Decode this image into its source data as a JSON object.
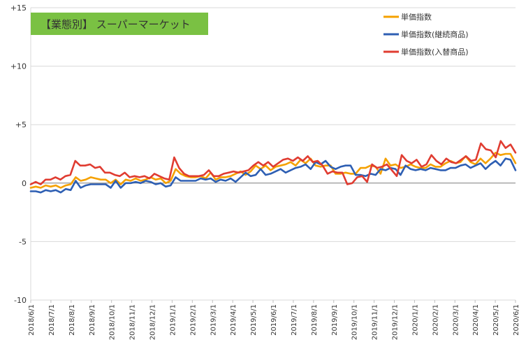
{
  "chart_data": {
    "type": "line",
    "title": "【業態別】 スーパーマーケット",
    "title_bg_color": "#7ac143",
    "title_text_color": "#ffffff",
    "ylim": [
      -10,
      15
    ],
    "yticks": [
      {
        "value": 15,
        "label": "+15"
      },
      {
        "value": 10,
        "label": "+10"
      },
      {
        "value": 5,
        "label": "+5"
      },
      {
        "value": 0,
        "label": "0"
      },
      {
        "value": -5,
        "label": "-5"
      },
      {
        "value": -10,
        "label": "-10"
      }
    ],
    "grid": "horizontal",
    "legend_position": "top-right",
    "x_tick_labels": [
      "2018/6/1",
      "2018/7/1",
      "2018/8/1",
      "2018/9/1",
      "2018/10/1",
      "2018/11/1",
      "2018/12/1",
      "2019/1/1",
      "2019/2/1",
      "2019/3/1",
      "2019/4/1",
      "2019/5/1",
      "2019/6/1",
      "2019/7/1",
      "2019/8/1",
      "2019/9/1",
      "2019/10/1",
      "2019/11/1",
      "2019/12/1",
      "2020/1/1",
      "2020/2/1",
      "2020/3/1",
      "2020/4/1",
      "2020/5/1",
      "2020/6/1"
    ],
    "x_range": [
      "2018/6/1",
      "2020/6/1"
    ],
    "series": [
      {
        "name": "単価指数",
        "color": "#f5a100",
        "values": [
          -0.4,
          -0.3,
          -0.4,
          -0.2,
          -0.3,
          -0.2,
          -0.4,
          -0.2,
          -0.1,
          0.5,
          0.2,
          0.3,
          0.5,
          0.4,
          0.3,
          0.3,
          0.0,
          0.3,
          -0.1,
          0.3,
          0.2,
          0.4,
          0.2,
          0.3,
          0.5,
          0.3,
          0.4,
          0.0,
          0.2,
          1.2,
          0.8,
          0.6,
          0.5,
          0.5,
          0.6,
          0.4,
          0.9,
          0.3,
          0.5,
          0.5,
          0.6,
          0.8,
          1.0,
          0.7,
          1.0,
          1.5,
          1.2,
          1.5,
          1.1,
          1.4,
          1.5,
          1.6,
          1.8,
          1.5,
          2.0,
          1.7,
          2.1,
          1.5,
          1.4,
          1.5,
          1.5,
          0.8,
          0.8,
          0.9,
          0.8,
          0.8,
          1.3,
          1.3,
          1.5,
          1.4,
          0.8,
          2.1,
          1.5,
          1.6,
          1.3,
          1.4,
          1.6,
          1.4,
          1.3,
          1.3,
          1.6,
          1.4,
          1.4,
          1.7,
          1.9,
          1.7,
          1.8,
          2.3,
          1.8,
          1.6,
          2.1,
          1.7,
          2.1,
          2.6,
          2.4,
          2.5,
          2.5,
          1.7
        ]
      },
      {
        "name": "単価指数(継続商品)",
        "color": "#2e5fb3",
        "values": [
          -0.7,
          -0.7,
          -0.8,
          -0.6,
          -0.7,
          -0.6,
          -0.8,
          -0.5,
          -0.6,
          0.2,
          -0.4,
          -0.2,
          -0.1,
          -0.1,
          -0.1,
          -0.1,
          -0.4,
          0.2,
          -0.4,
          0.0,
          0.0,
          0.1,
          0.0,
          0.2,
          0.1,
          -0.1,
          0.0,
          -0.3,
          -0.2,
          0.5,
          0.2,
          0.2,
          0.2,
          0.2,
          0.4,
          0.3,
          0.4,
          0.1,
          0.3,
          0.2,
          0.4,
          0.1,
          0.5,
          0.9,
          0.6,
          0.7,
          1.2,
          0.7,
          0.8,
          1.0,
          1.2,
          0.9,
          1.1,
          1.3,
          1.4,
          1.6,
          1.2,
          1.8,
          1.6,
          1.9,
          1.4,
          1.2,
          1.4,
          1.5,
          1.5,
          0.7,
          0.7,
          0.6,
          0.8,
          0.7,
          1.2,
          1.1,
          1.3,
          1.2,
          0.7,
          1.5,
          1.2,
          1.1,
          1.2,
          1.1,
          1.3,
          1.2,
          1.1,
          1.1,
          1.3,
          1.3,
          1.5,
          1.6,
          1.3,
          1.5,
          1.7,
          1.2,
          1.6,
          1.9,
          1.5,
          2.1,
          2.0,
          1.1
        ]
      },
      {
        "name": "単価指数(入替商品)",
        "color": "#e03c31",
        "values": [
          -0.1,
          0.1,
          -0.1,
          0.3,
          0.3,
          0.5,
          0.3,
          0.6,
          0.7,
          1.9,
          1.5,
          1.5,
          1.6,
          1.3,
          1.4,
          0.9,
          0.9,
          0.7,
          0.6,
          0.9,
          0.5,
          0.6,
          0.5,
          0.6,
          0.4,
          0.8,
          0.6,
          0.4,
          0.3,
          2.2,
          1.3,
          0.8,
          0.6,
          0.6,
          0.6,
          0.7,
          1.1,
          0.6,
          0.6,
          0.8,
          0.9,
          1.0,
          0.9,
          1.0,
          1.1,
          1.5,
          1.8,
          1.5,
          1.8,
          1.4,
          1.7,
          2.0,
          2.1,
          1.9,
          2.2,
          1.9,
          2.3,
          1.8,
          1.9,
          1.5,
          0.8,
          1.0,
          0.9,
          0.9,
          -0.1,
          0.0,
          0.5,
          0.6,
          0.1,
          1.6,
          1.3,
          1.4,
          1.6,
          1.1,
          0.6,
          2.4,
          1.9,
          1.7,
          2.0,
          1.4,
          1.6,
          2.4,
          1.9,
          1.6,
          2.1,
          1.8,
          1.7,
          2.0,
          2.3,
          1.9,
          2.0,
          3.4,
          2.9,
          2.8,
          2.2,
          3.6,
          3.0,
          3.3,
          2.6
        ]
      }
    ]
  }
}
